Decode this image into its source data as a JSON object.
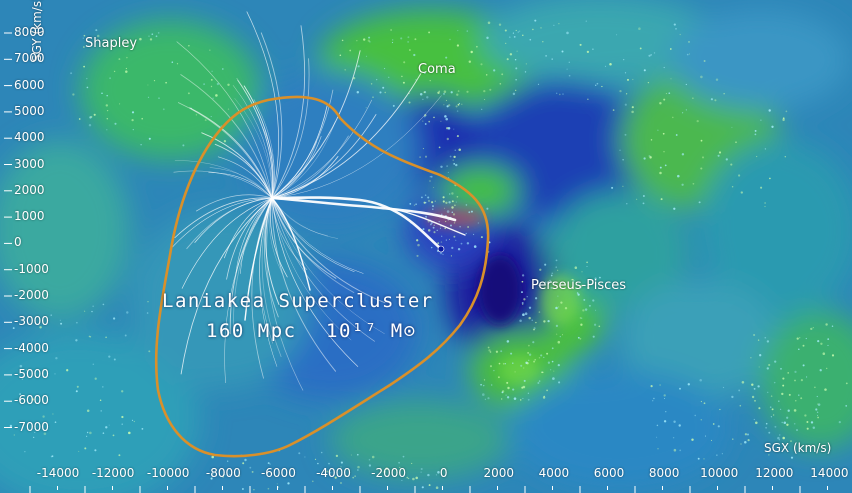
{
  "labels": {
    "shapley": "Shapley",
    "coma": "Coma",
    "perseus_pisces": "Perseus-Pisces",
    "supercluster_name": "Laniakea Supercluster",
    "supercluster_size": "160 Mpc",
    "supercluster_mass": "10¹⁷ M⊙",
    "y_axis_label": "SGY (km/s)",
    "x_axis_label": "SGX (km/s)"
  },
  "y_ticks": [
    "8000",
    "7000",
    "6000",
    "5000",
    "4000",
    "3000",
    "2000",
    "1000",
    "0",
    "-1000",
    "-2000",
    "-3000",
    "-4000",
    "-5000",
    "-6000",
    "-7000"
  ],
  "x_ticks": [
    "-14000",
    "-12000",
    "-10000",
    "-8000",
    "-6000",
    "-4000",
    "-2000",
    "0",
    "2000",
    "4000",
    "6000",
    "8000",
    "10000",
    "12000",
    "14000"
  ],
  "colors": {
    "boundary": "#d9902a",
    "streamlines": "#ffffff",
    "void_blue": "#1f3fb8",
    "dense_green": "#33c23a",
    "background_teal": "#2a8fb0"
  }
}
